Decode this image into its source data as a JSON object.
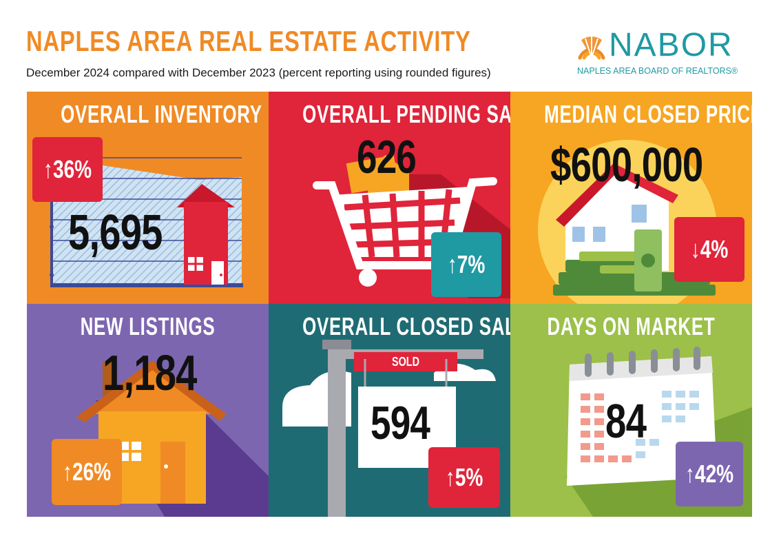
{
  "header": {
    "title": "NAPLES AREA REAL ESTATE ACTIVITY",
    "subtitle": "December 2024 compared with December 2023 (percent reporting using rounded figures)"
  },
  "logo": {
    "wordmark": "NABOR",
    "tagline": "NAPLES AREA BOARD OF REALTORS®"
  },
  "panels": {
    "inventory": {
      "title": "OVERALL INVENTORY",
      "value": "5,695",
      "change": "↑36%",
      "direction": "up",
      "bg": "#f08a24",
      "badge_color": "#e0243a"
    },
    "pending": {
      "title": "OVERALL PENDING SALES",
      "value": "626",
      "change": "↑7%",
      "direction": "up",
      "bg": "#e0243a",
      "badge_color": "#1f9aa3"
    },
    "median": {
      "title": "MEDIAN CLOSED PRICE",
      "value": "$600,000",
      "change": "↓4%",
      "direction": "down",
      "bg": "#f6a623",
      "badge_color": "#e0243a"
    },
    "listings": {
      "title": "NEW LISTINGS",
      "value": "1,184",
      "change": "↑26%",
      "direction": "up",
      "bg": "#7d66b0",
      "badge_color": "#f08a24"
    },
    "closed": {
      "title": "OVERALL CLOSED SALES",
      "value": "594",
      "sign": "SOLD",
      "change": "↑5%",
      "direction": "up",
      "bg": "#1f6b73",
      "badge_color": "#e0243a"
    },
    "days": {
      "title": "DAYS ON MARKET",
      "value": "84",
      "change": "↑42%",
      "direction": "up",
      "bg": "#9cc04a",
      "badge_color": "#7d66b0"
    }
  }
}
